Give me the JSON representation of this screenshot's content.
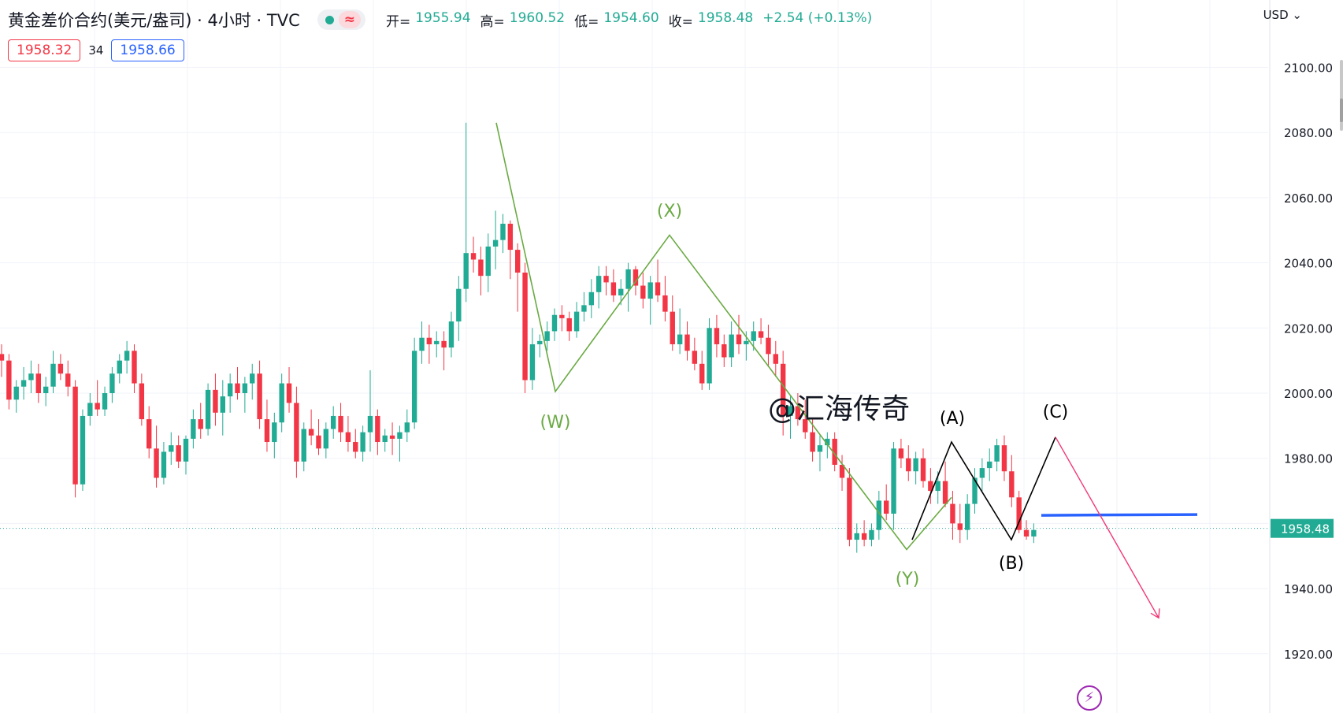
{
  "header": {
    "title": "黄金差价合约(美元/盎司) · 4小时 · TVC",
    "wave_icon": "≈",
    "ohlc": [
      {
        "k": "开=",
        "v": "1955.94"
      },
      {
        "k": "高=",
        "v": "1960.52"
      },
      {
        "k": "低=",
        "v": "1954.60"
      },
      {
        "k": "收=",
        "v": "1958.48"
      }
    ],
    "change": "+2.54 (+0.13%)",
    "bid": "1958.32",
    "spread": "34",
    "ask": "1958.66"
  },
  "currency": "USD",
  "currency_icon": "chevron-down-icon",
  "watermark": "@汇海传奇",
  "colors": {
    "up": "#22ab94",
    "down": "#f23645",
    "wave_green": "#6aaa43",
    "wave_black": "#000000",
    "projection": "#f23878",
    "support": "#2962ff",
    "last_price_bg": "#22ab94"
  },
  "chart_data": {
    "type": "candlestick",
    "title": "黄金差价合约(美元/盎司) · 4小时 · TVC",
    "ylim": [
      1912,
      2118
    ],
    "y_ticks": [
      "2100.00",
      "2080.00",
      "2060.00",
      "2040.00",
      "2020.00",
      "2000.00",
      "1980.00",
      "1960.00",
      "1940.00",
      "1920.00"
    ],
    "y_tick_values": [
      2100,
      2080,
      2060,
      2040,
      2020,
      2000,
      1980,
      1960,
      1940,
      1920
    ],
    "last_price": 1958.48,
    "last_price_label": "1958.48",
    "candles_ohlc": [
      [
        2012,
        2015,
        2005,
        2010
      ],
      [
        2010,
        2012,
        1995,
        1998
      ],
      [
        1998,
        2004,
        1994,
        2002
      ],
      [
        2002,
        2008,
        1998,
        2004
      ],
      [
        2004,
        2010,
        2000,
        2006
      ],
      [
        2006,
        2009,
        1997,
        2000
      ],
      [
        2000,
        2005,
        1996,
        2002
      ],
      [
        2002,
        2013,
        2000,
        2009
      ],
      [
        2009,
        2012,
        2004,
        2006
      ],
      [
        2006,
        2010,
        1999,
        2002
      ],
      [
        2002,
        2004,
        1968,
        1972
      ],
      [
        1972,
        1995,
        1970,
        1993
      ],
      [
        1993,
        2000,
        1990,
        1997
      ],
      [
        1997,
        2004,
        1993,
        1995
      ],
      [
        1995,
        2002,
        1993,
        2000
      ],
      [
        2000,
        2008,
        1997,
        2006
      ],
      [
        2006,
        2012,
        2003,
        2010
      ],
      [
        2010,
        2016,
        2006,
        2013
      ],
      [
        2013,
        2015,
        2000,
        2003
      ],
      [
        2003,
        2006,
        1990,
        1992
      ],
      [
        1992,
        1996,
        1980,
        1983
      ],
      [
        1983,
        1990,
        1971,
        1974
      ],
      [
        1974,
        1985,
        1972,
        1982
      ],
      [
        1982,
        1988,
        1978,
        1984
      ],
      [
        1984,
        1987,
        1977,
        1979
      ],
      [
        1979,
        1987,
        1975,
        1986
      ],
      [
        1986,
        1995,
        1983,
        1992
      ],
      [
        1992,
        1997,
        1986,
        1989
      ],
      [
        1989,
        2003,
        1987,
        2001
      ],
      [
        2001,
        2006,
        1990,
        1994
      ],
      [
        1994,
        2004,
        1987,
        1999
      ],
      [
        1999,
        2006,
        1994,
        2003
      ],
      [
        2003,
        2008,
        1998,
        2000
      ],
      [
        2000,
        2005,
        1994,
        2003
      ],
      [
        2003,
        2009,
        1998,
        2006
      ],
      [
        2006,
        2010,
        1989,
        1992
      ],
      [
        1992,
        1998,
        1982,
        1985
      ],
      [
        1985,
        1994,
        1980,
        1991
      ],
      [
        1991,
        2006,
        1988,
        2003
      ],
      [
        2003,
        2008,
        1994,
        1997
      ],
      [
        1997,
        2002,
        1974,
        1979
      ],
      [
        1979,
        1991,
        1976,
        1989
      ],
      [
        1989,
        1995,
        1984,
        1987
      ],
      [
        1987,
        1992,
        1981,
        1983
      ],
      [
        1983,
        1991,
        1980,
        1989
      ],
      [
        1989,
        1996,
        1986,
        1993
      ],
      [
        1993,
        1997,
        1985,
        1988
      ],
      [
        1988,
        1993,
        1982,
        1985
      ],
      [
        1985,
        1989,
        1980,
        1982
      ],
      [
        1982,
        1990,
        1979,
        1988
      ],
      [
        1988,
        2007,
        1982,
        1993
      ],
      [
        1993,
        1995,
        1981,
        1985
      ],
      [
        1985,
        1989,
        1982,
        1987
      ],
      [
        1987,
        1991,
        1981,
        1986
      ],
      [
        1986,
        1990,
        1979,
        1988
      ],
      [
        1988,
        1995,
        1985,
        1991
      ],
      [
        1991,
        2017,
        1989,
        2013
      ],
      [
        2013,
        2022,
        2009,
        2017
      ],
      [
        2017,
        2021,
        2009,
        2015
      ],
      [
        2015,
        2019,
        2011,
        2016
      ],
      [
        2016,
        2019,
        2007,
        2014
      ],
      [
        2014,
        2025,
        2011,
        2022
      ],
      [
        2022,
        2036,
        2016,
        2032
      ],
      [
        2032,
        2083,
        2028,
        2043
      ],
      [
        2043,
        2048,
        2037,
        2041
      ],
      [
        2041,
        2045,
        2030,
        2036
      ],
      [
        2036,
        2049,
        2031,
        2045
      ],
      [
        2045,
        2056,
        2038,
        2047
      ],
      [
        2047,
        2055,
        2043,
        2052
      ],
      [
        2052,
        2053,
        2035,
        2044
      ],
      [
        2044,
        2046,
        2025,
        2037
      ],
      [
        2037,
        2040,
        2000,
        2004
      ],
      [
        2004,
        2020,
        2001,
        2015
      ],
      [
        2015,
        2018,
        2011,
        2016
      ],
      [
        2016,
        2022,
        2013,
        2019
      ],
      [
        2019,
        2026,
        2016,
        2024
      ],
      [
        2024,
        2027,
        2019,
        2023
      ],
      [
        2023,
        2025,
        2016,
        2019
      ],
      [
        2019,
        2028,
        2017,
        2025
      ],
      [
        2025,
        2031,
        2022,
        2027
      ],
      [
        2027,
        2035,
        2023,
        2031
      ],
      [
        2031,
        2039,
        2026,
        2036
      ],
      [
        2036,
        2039,
        2030,
        2034
      ],
      [
        2034,
        2038,
        2028,
        2030
      ],
      [
        2030,
        2035,
        2027,
        2032
      ],
      [
        2032,
        2040,
        2025,
        2038
      ],
      [
        2038,
        2039,
        2030,
        2033
      ],
      [
        2033,
        2037,
        2026,
        2029
      ],
      [
        2029,
        2036,
        2021,
        2034
      ],
      [
        2034,
        2041,
        2028,
        2030
      ],
      [
        2030,
        2036,
        2022,
        2025
      ],
      [
        2025,
        2030,
        2013,
        2015
      ],
      [
        2015,
        2026,
        2012,
        2018
      ],
      [
        2018,
        2022,
        2010,
        2013
      ],
      [
        2013,
        2017,
        2007,
        2009
      ],
      [
        2009,
        2013,
        2001,
        2003
      ],
      [
        2003,
        2023,
        2001,
        2020
      ],
      [
        2020,
        2024,
        2011,
        2015
      ],
      [
        2015,
        2018,
        2008,
        2011
      ],
      [
        2011,
        2022,
        2008,
        2018
      ],
      [
        2018,
        2024,
        2012,
        2015
      ],
      [
        2015,
        2019,
        2010,
        2016
      ],
      [
        2016,
        2022,
        2013,
        2019
      ],
      [
        2019,
        2023,
        2015,
        2017
      ],
      [
        2017,
        2021,
        2008,
        2012
      ],
      [
        2012,
        2016,
        2005,
        2009
      ],
      [
        2009,
        2013,
        1987,
        1993
      ],
      [
        1993,
        1999,
        1986,
        1996
      ],
      [
        1996,
        2000,
        1990,
        1992
      ],
      [
        1992,
        1998,
        1986,
        1988
      ],
      [
        1988,
        1992,
        1979,
        1982
      ],
      [
        1982,
        1987,
        1976,
        1984
      ],
      [
        1984,
        1988,
        1980,
        1986
      ],
      [
        1986,
        1988,
        1976,
        1978
      ],
      [
        1978,
        1981,
        1970,
        1974
      ],
      [
        1974,
        1977,
        1953,
        1955
      ],
      [
        1955,
        1960,
        1951,
        1957
      ],
      [
        1957,
        1961,
        1953,
        1955
      ],
      [
        1955,
        1960,
        1953,
        1958
      ],
      [
        1958,
        1970,
        1955,
        1967
      ],
      [
        1967,
        1972,
        1961,
        1963
      ],
      [
        1963,
        1985,
        1958,
        1983
      ],
      [
        1983,
        1986,
        1977,
        1980
      ],
      [
        1980,
        1984,
        1973,
        1976
      ],
      [
        1976,
        1982,
        1972,
        1980
      ],
      [
        1980,
        1983,
        1971,
        1973
      ],
      [
        1973,
        1977,
        1966,
        1970
      ],
      [
        1970,
        1976,
        1966,
        1973
      ],
      [
        1973,
        1979,
        1965,
        1966
      ],
      [
        1966,
        1970,
        1955,
        1960
      ],
      [
        1960,
        1966,
        1954,
        1958
      ],
      [
        1958,
        1969,
        1955,
        1966
      ],
      [
        1966,
        1977,
        1963,
        1974
      ],
      [
        1974,
        1980,
        1970,
        1977
      ],
      [
        1977,
        1983,
        1973,
        1979
      ],
      [
        1979,
        1986,
        1976,
        1984
      ],
      [
        1984,
        1987,
        1973,
        1976
      ],
      [
        1976,
        1981,
        1965,
        1968
      ],
      [
        1968,
        1970,
        1957,
        1958
      ],
      [
        1958,
        1961,
        1955,
        1956
      ],
      [
        1956,
        1960,
        1954,
        1958
      ]
    ],
    "annotations": {
      "green_wave": [
        {
          "label": "(W)",
          "value": 2000.5
        },
        {
          "label": "(X)",
          "value": 2048.5
        },
        {
          "label": "(Y)",
          "value": 1952
        }
      ],
      "black_wave": [
        {
          "label": "(A)",
          "value": 1985
        },
        {
          "label": "(B)",
          "value": 1955
        },
        {
          "label": "(C)",
          "value": 1986.5
        }
      ],
      "support_level": 1962.5,
      "projection_target": 1931
    }
  }
}
